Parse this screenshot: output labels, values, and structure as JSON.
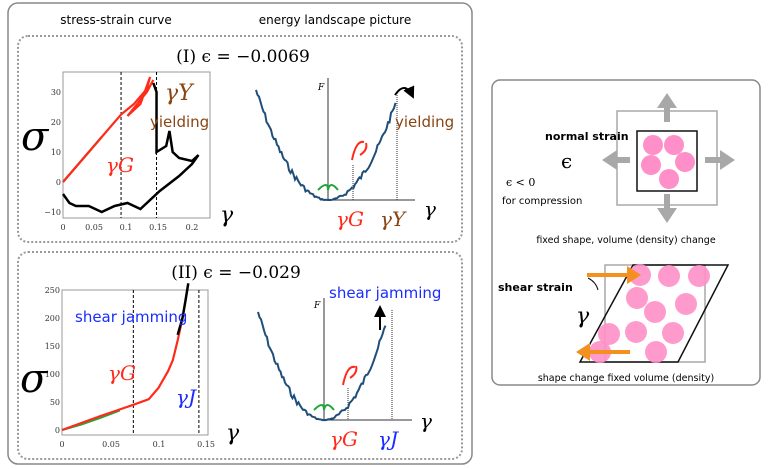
{
  "headers": {
    "left": "stress-strain curve",
    "right": "energy landscape picture"
  },
  "panel1": {
    "title": "(I)  ϵ = −0.0069",
    "sigma": "σ",
    "gamma": "γ",
    "gammaG": "γG",
    "gammaY": "γY",
    "yielding": "yielding",
    "F": "F",
    "xticks": [
      "0",
      "0.05",
      "0.1",
      "0.15",
      "0.2"
    ],
    "yticks": [
      "30",
      "20",
      "10",
      "0",
      "−10"
    ]
  },
  "panel2": {
    "title": "(II)  ϵ = −0.029",
    "sigma": "σ",
    "gamma": "γ",
    "gammaG": "γG",
    "gammaJ": "γJ",
    "shear_jamming": "shear jamming",
    "F": "F",
    "xticks": [
      "0",
      "0.05",
      "0.1",
      "0.15"
    ],
    "yticks": [
      "250",
      "200",
      "150",
      "100",
      "50",
      "0"
    ]
  },
  "right": {
    "normal_strain": "normal strain",
    "epsilon": "ϵ",
    "eps_cond": "ϵ < 0",
    "for_compression": "for compression",
    "normal_caption": "fixed shape, volume (density) change",
    "shear_strain": "shear strain",
    "gamma": "γ",
    "shear_caption": "shape change fixed volume (density)"
  },
  "colors": {
    "red": "#ff2a1a",
    "green": "#1fa83a",
    "brown": "#8b4513",
    "blue": "#1a2cff",
    "landscape": "#1f4e79",
    "pink": "#ff8fc8",
    "orange": "#f39020",
    "gray": "#a8a8a8"
  },
  "chart_data": [
    {
      "type": "line",
      "xlim": [
        0,
        0.22
      ],
      "ylim": [
        -12,
        36
      ],
      "vlines": [
        0.09,
        0.145
      ],
      "series": [
        {
          "color": "green",
          "x": [
            0,
            0.06
          ],
          "y": [
            0,
            15
          ]
        },
        {
          "color": "red",
          "x": [
            0,
            0.05,
            0.09,
            0.11,
            0.13,
            0.135,
            0.12,
            0.1,
            0.13,
            0.14
          ],
          "y": [
            0,
            12.5,
            22.5,
            26,
            31,
            35,
            26,
            22,
            30,
            34
          ]
        },
        {
          "color": "black",
          "x": [
            0.14,
            0.145,
            0.145,
            0.16,
            0.165,
            0.17,
            0.18,
            0.2,
            0.21,
            0.2,
            0.18,
            0.15,
            0.12,
            0.1,
            0.08,
            0.06,
            0.04,
            0.02,
            0.01,
            0
          ],
          "y": [
            33,
            30,
            10,
            12,
            17,
            10,
            8,
            7,
            9,
            6,
            2,
            -3,
            -9,
            -7,
            -8,
            -10,
            -8,
            -8,
            -7,
            -4
          ]
        }
      ]
    },
    {
      "type": "line",
      "xlim": [
        0,
        0.15
      ],
      "ylim": [
        0,
        250
      ],
      "vlines": [
        0.074,
        0.142
      ],
      "series": [
        {
          "color": "green",
          "x": [
            0,
            0.02,
            0.04,
            0.06
          ],
          "y": [
            0,
            10,
            22,
            35
          ]
        },
        {
          "color": "red",
          "x": [
            0,
            0.04,
            0.074,
            0.09,
            0.1,
            0.11,
            0.115,
            0.12,
            0.125
          ],
          "y": [
            0,
            25,
            45,
            55,
            75,
            105,
            125,
            160,
            200
          ]
        },
        {
          "color": "black",
          "x": [
            0.12,
            0.125,
            0.128,
            0.131
          ],
          "y": [
            170,
            200,
            230,
            262
          ]
        }
      ]
    }
  ]
}
